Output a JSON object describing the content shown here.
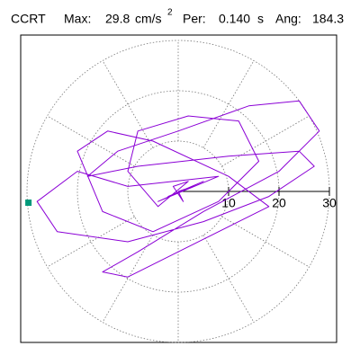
{
  "chart_data": {
    "type": "polar-motion",
    "station": "CCRT",
    "max_label": "Max:",
    "max": 29.8,
    "unit": "cm/s",
    "unit_power": "2",
    "period_label": "Per:",
    "period": {
      "value": 0.14,
      "label": "0.140"
    },
    "period_unit": "s",
    "angle_label": "Ang:",
    "angle": 184.3,
    "rlim": [
      0,
      30
    ],
    "rticks": [
      10,
      20,
      30
    ],
    "color": "#8b00d6",
    "marker_color": "#00997a",
    "series": [
      {
        "x": [
          0,
          3,
          -2,
          5,
          -4,
          8,
          -10,
          -20,
          -28,
          -24,
          -10,
          5,
          18,
          27,
          24,
          10,
          -8,
          -18,
          -12,
          0,
          14,
          24,
          28,
          20,
          5,
          -8,
          -15,
          -10,
          0,
          12,
          18,
          10,
          -5,
          -14,
          -20,
          -15,
          -5,
          8,
          16,
          12,
          2,
          -8,
          -10,
          -4,
          2,
          -1,
          1,
          0
        ],
        "y": [
          0,
          1,
          -1,
          2,
          -2,
          3,
          1,
          4,
          -2,
          -8,
          -10,
          -6,
          -1,
          5,
          8,
          7,
          5,
          3,
          8,
          12,
          17,
          18,
          12,
          4,
          -4,
          -12,
          -16,
          -17,
          -12,
          -6,
          -3,
          3,
          10,
          12,
          8,
          -4,
          -8,
          -2,
          6,
          14,
          15,
          12,
          4,
          -3,
          2,
          1,
          -2,
          0
        ]
      }
    ]
  }
}
